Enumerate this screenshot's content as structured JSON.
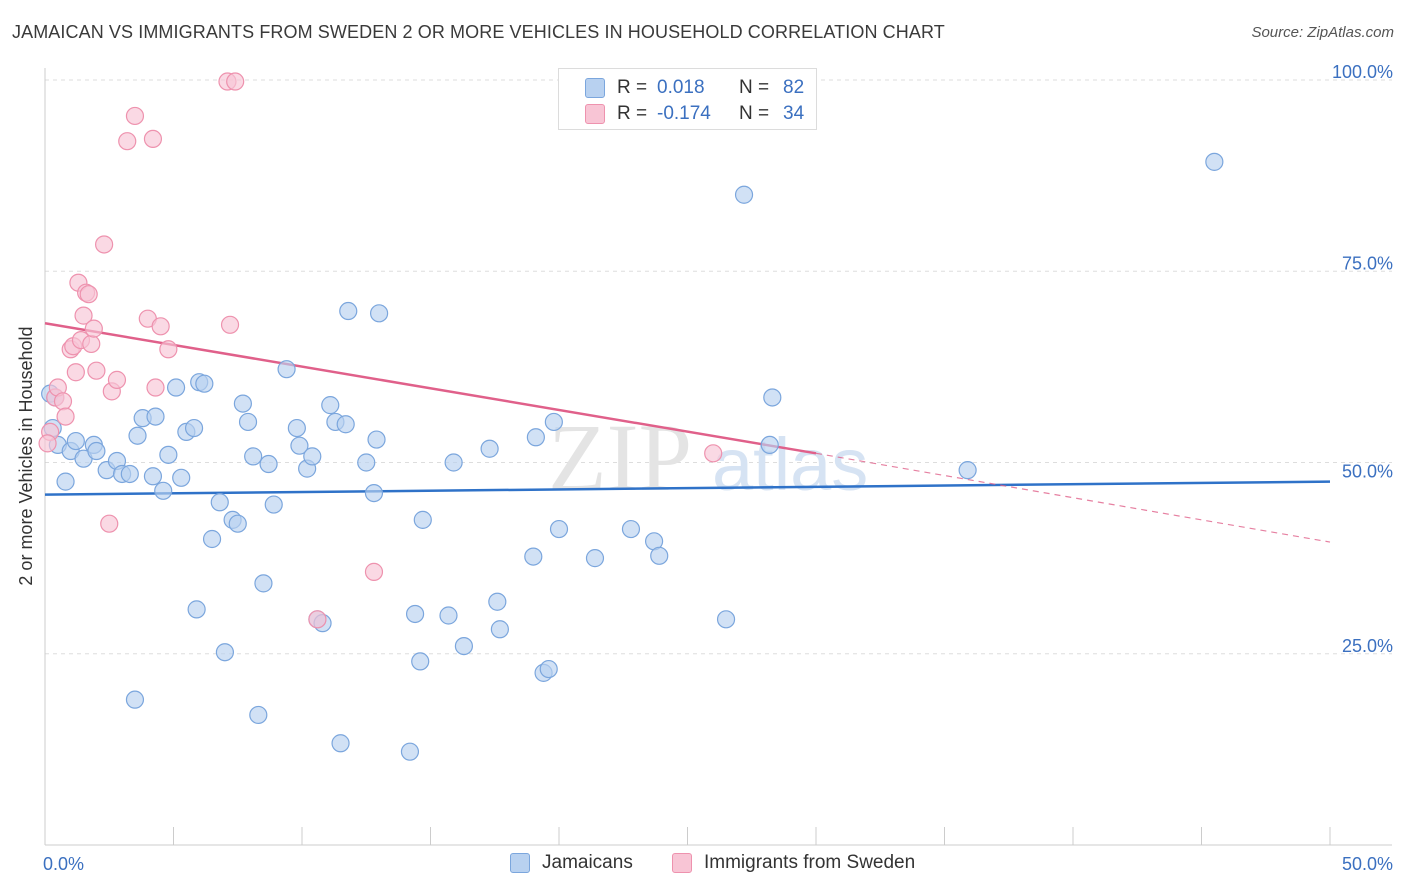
{
  "header": {
    "title": "JAMAICAN VS IMMIGRANTS FROM SWEDEN 2 OR MORE VEHICLES IN HOUSEHOLD CORRELATION CHART",
    "source": "Source: ZipAtlas.com"
  },
  "watermark": {
    "zip": "ZIP",
    "atlas": "atlas"
  },
  "colors": {
    "blue_fill": "#b8d1f0",
    "blue_stroke": "#7ba6dd",
    "blue_line": "#2f72c8",
    "pink_fill": "#f8c5d5",
    "pink_stroke": "#ee92ae",
    "pink_line": "#e0608a",
    "value_text": "#3b70c0",
    "grid": "#dddddd"
  },
  "legend_top": {
    "rows": [
      {
        "r_label": "R =",
        "r_value": "0.018",
        "n_label": "N =",
        "n_value": "82"
      },
      {
        "r_label": "R =",
        "r_value": "-0.174",
        "n_label": "N =",
        "n_value": "34"
      }
    ]
  },
  "legend_bottom": {
    "items": [
      "Jamaicans",
      "Immigrants from Sweden"
    ]
  },
  "chart_data": {
    "type": "scatter",
    "title": "JAMAICAN VS IMMIGRANTS FROM SWEDEN 2 OR MORE VEHICLES IN HOUSEHOLD CORRELATION CHART",
    "xlabel": "",
    "ylabel": "2 or more Vehicles in Household",
    "xlim": [
      0,
      50
    ],
    "ylim": [
      0,
      102
    ],
    "x_tick_labels": [
      "0.0%",
      "50.0%"
    ],
    "y_ticks": [
      25,
      50,
      75,
      100
    ],
    "y_tick_labels": [
      "25.0%",
      "50.0%",
      "75.0%",
      "100.0%"
    ],
    "grid": true,
    "legend_position": "top-center",
    "series": [
      {
        "name": "Jamaicans",
        "r": 0.018,
        "n": 82,
        "trend": {
          "x": [
            0,
            50
          ],
          "y": [
            45.8,
            47.5
          ],
          "style": "solid"
        },
        "points": [
          [
            0.2,
            59.0
          ],
          [
            0.3,
            54.5
          ],
          [
            0.4,
            58.5
          ],
          [
            0.5,
            52.3
          ],
          [
            0.8,
            47.5
          ],
          [
            1.0,
            51.5
          ],
          [
            1.2,
            52.8
          ],
          [
            1.5,
            50.5
          ],
          [
            1.9,
            52.3
          ],
          [
            2.0,
            51.5
          ],
          [
            2.4,
            49.0
          ],
          [
            2.8,
            50.2
          ],
          [
            3.0,
            48.5
          ],
          [
            3.3,
            48.5
          ],
          [
            3.5,
            19.0
          ],
          [
            3.6,
            53.5
          ],
          [
            3.8,
            55.8
          ],
          [
            4.2,
            48.2
          ],
          [
            4.3,
            56.0
          ],
          [
            4.6,
            46.3
          ],
          [
            4.8,
            51.0
          ],
          [
            5.1,
            59.8
          ],
          [
            5.3,
            48.0
          ],
          [
            5.5,
            54.0
          ],
          [
            5.8,
            54.5
          ],
          [
            5.9,
            30.8
          ],
          [
            6.0,
            60.5
          ],
          [
            6.2,
            60.3
          ],
          [
            6.5,
            40.0
          ],
          [
            6.8,
            44.8
          ],
          [
            7.0,
            25.2
          ],
          [
            7.3,
            42.5
          ],
          [
            7.5,
            42.0
          ],
          [
            7.7,
            57.7
          ],
          [
            7.9,
            55.3
          ],
          [
            8.1,
            50.8
          ],
          [
            8.3,
            17.0
          ],
          [
            8.5,
            34.2
          ],
          [
            8.7,
            49.8
          ],
          [
            8.9,
            44.5
          ],
          [
            9.4,
            62.2
          ],
          [
            9.8,
            54.5
          ],
          [
            9.9,
            52.2
          ],
          [
            10.2,
            49.2
          ],
          [
            10.4,
            50.8
          ],
          [
            10.6,
            29.5
          ],
          [
            10.8,
            29.0
          ],
          [
            11.1,
            57.5
          ],
          [
            11.3,
            55.3
          ],
          [
            11.5,
            13.3
          ],
          [
            11.7,
            55.0
          ],
          [
            11.8,
            69.8
          ],
          [
            12.5,
            50.0
          ],
          [
            12.8,
            46.0
          ],
          [
            12.9,
            53.0
          ],
          [
            13.0,
            69.5
          ],
          [
            14.2,
            12.2
          ],
          [
            14.4,
            30.2
          ],
          [
            14.6,
            24.0
          ],
          [
            14.7,
            42.5
          ],
          [
            15.7,
            30.0
          ],
          [
            15.9,
            50.0
          ],
          [
            16.3,
            26.0
          ],
          [
            17.3,
            51.8
          ],
          [
            17.6,
            31.8
          ],
          [
            17.7,
            28.2
          ],
          [
            19.0,
            37.7
          ],
          [
            19.1,
            53.3
          ],
          [
            19.4,
            22.5
          ],
          [
            19.6,
            23.0
          ],
          [
            19.8,
            55.3
          ],
          [
            20.0,
            41.3
          ],
          [
            21.4,
            37.5
          ],
          [
            22.8,
            41.3
          ],
          [
            23.7,
            39.7
          ],
          [
            23.9,
            37.8
          ],
          [
            26.5,
            29.5
          ],
          [
            27.2,
            85.0
          ],
          [
            28.2,
            52.3
          ],
          [
            28.3,
            58.5
          ],
          [
            35.9,
            49.0
          ],
          [
            45.5,
            89.3
          ]
        ]
      },
      {
        "name": "Immigrants from Sweden",
        "r": -0.174,
        "n": 34,
        "trend": {
          "x": [
            0,
            30
          ],
          "y": [
            68.2,
            51.2
          ],
          "style": "solid",
          "extension": {
            "x": [
              30,
              50
            ],
            "y": [
              51.2,
              39.6
            ],
            "style": "dashed"
          }
        },
        "points": [
          [
            0.2,
            54.0
          ],
          [
            0.4,
            58.5
          ],
          [
            0.5,
            59.8
          ],
          [
            0.7,
            58.0
          ],
          [
            0.8,
            56.0
          ],
          [
            1.0,
            64.8
          ],
          [
            1.1,
            65.2
          ],
          [
            1.2,
            61.8
          ],
          [
            1.3,
            73.5
          ],
          [
            1.4,
            66.0
          ],
          [
            1.5,
            69.2
          ],
          [
            1.6,
            72.2
          ],
          [
            1.7,
            72.0
          ],
          [
            1.8,
            65.5
          ],
          [
            1.9,
            67.5
          ],
          [
            2.0,
            62.0
          ],
          [
            2.3,
            78.5
          ],
          [
            2.5,
            42.0
          ],
          [
            2.6,
            59.3
          ],
          [
            2.8,
            60.8
          ],
          [
            3.2,
            92.0
          ],
          [
            3.5,
            95.3
          ],
          [
            4.0,
            68.8
          ],
          [
            4.2,
            92.3
          ],
          [
            4.3,
            59.8
          ],
          [
            4.5,
            67.8
          ],
          [
            4.8,
            64.8
          ],
          [
            7.1,
            99.8
          ],
          [
            7.2,
            68.0
          ],
          [
            7.4,
            99.8
          ],
          [
            10.6,
            29.5
          ],
          [
            12.8,
            35.7
          ],
          [
            26.0,
            51.2
          ],
          [
            0.1,
            52.5
          ]
        ]
      }
    ]
  }
}
